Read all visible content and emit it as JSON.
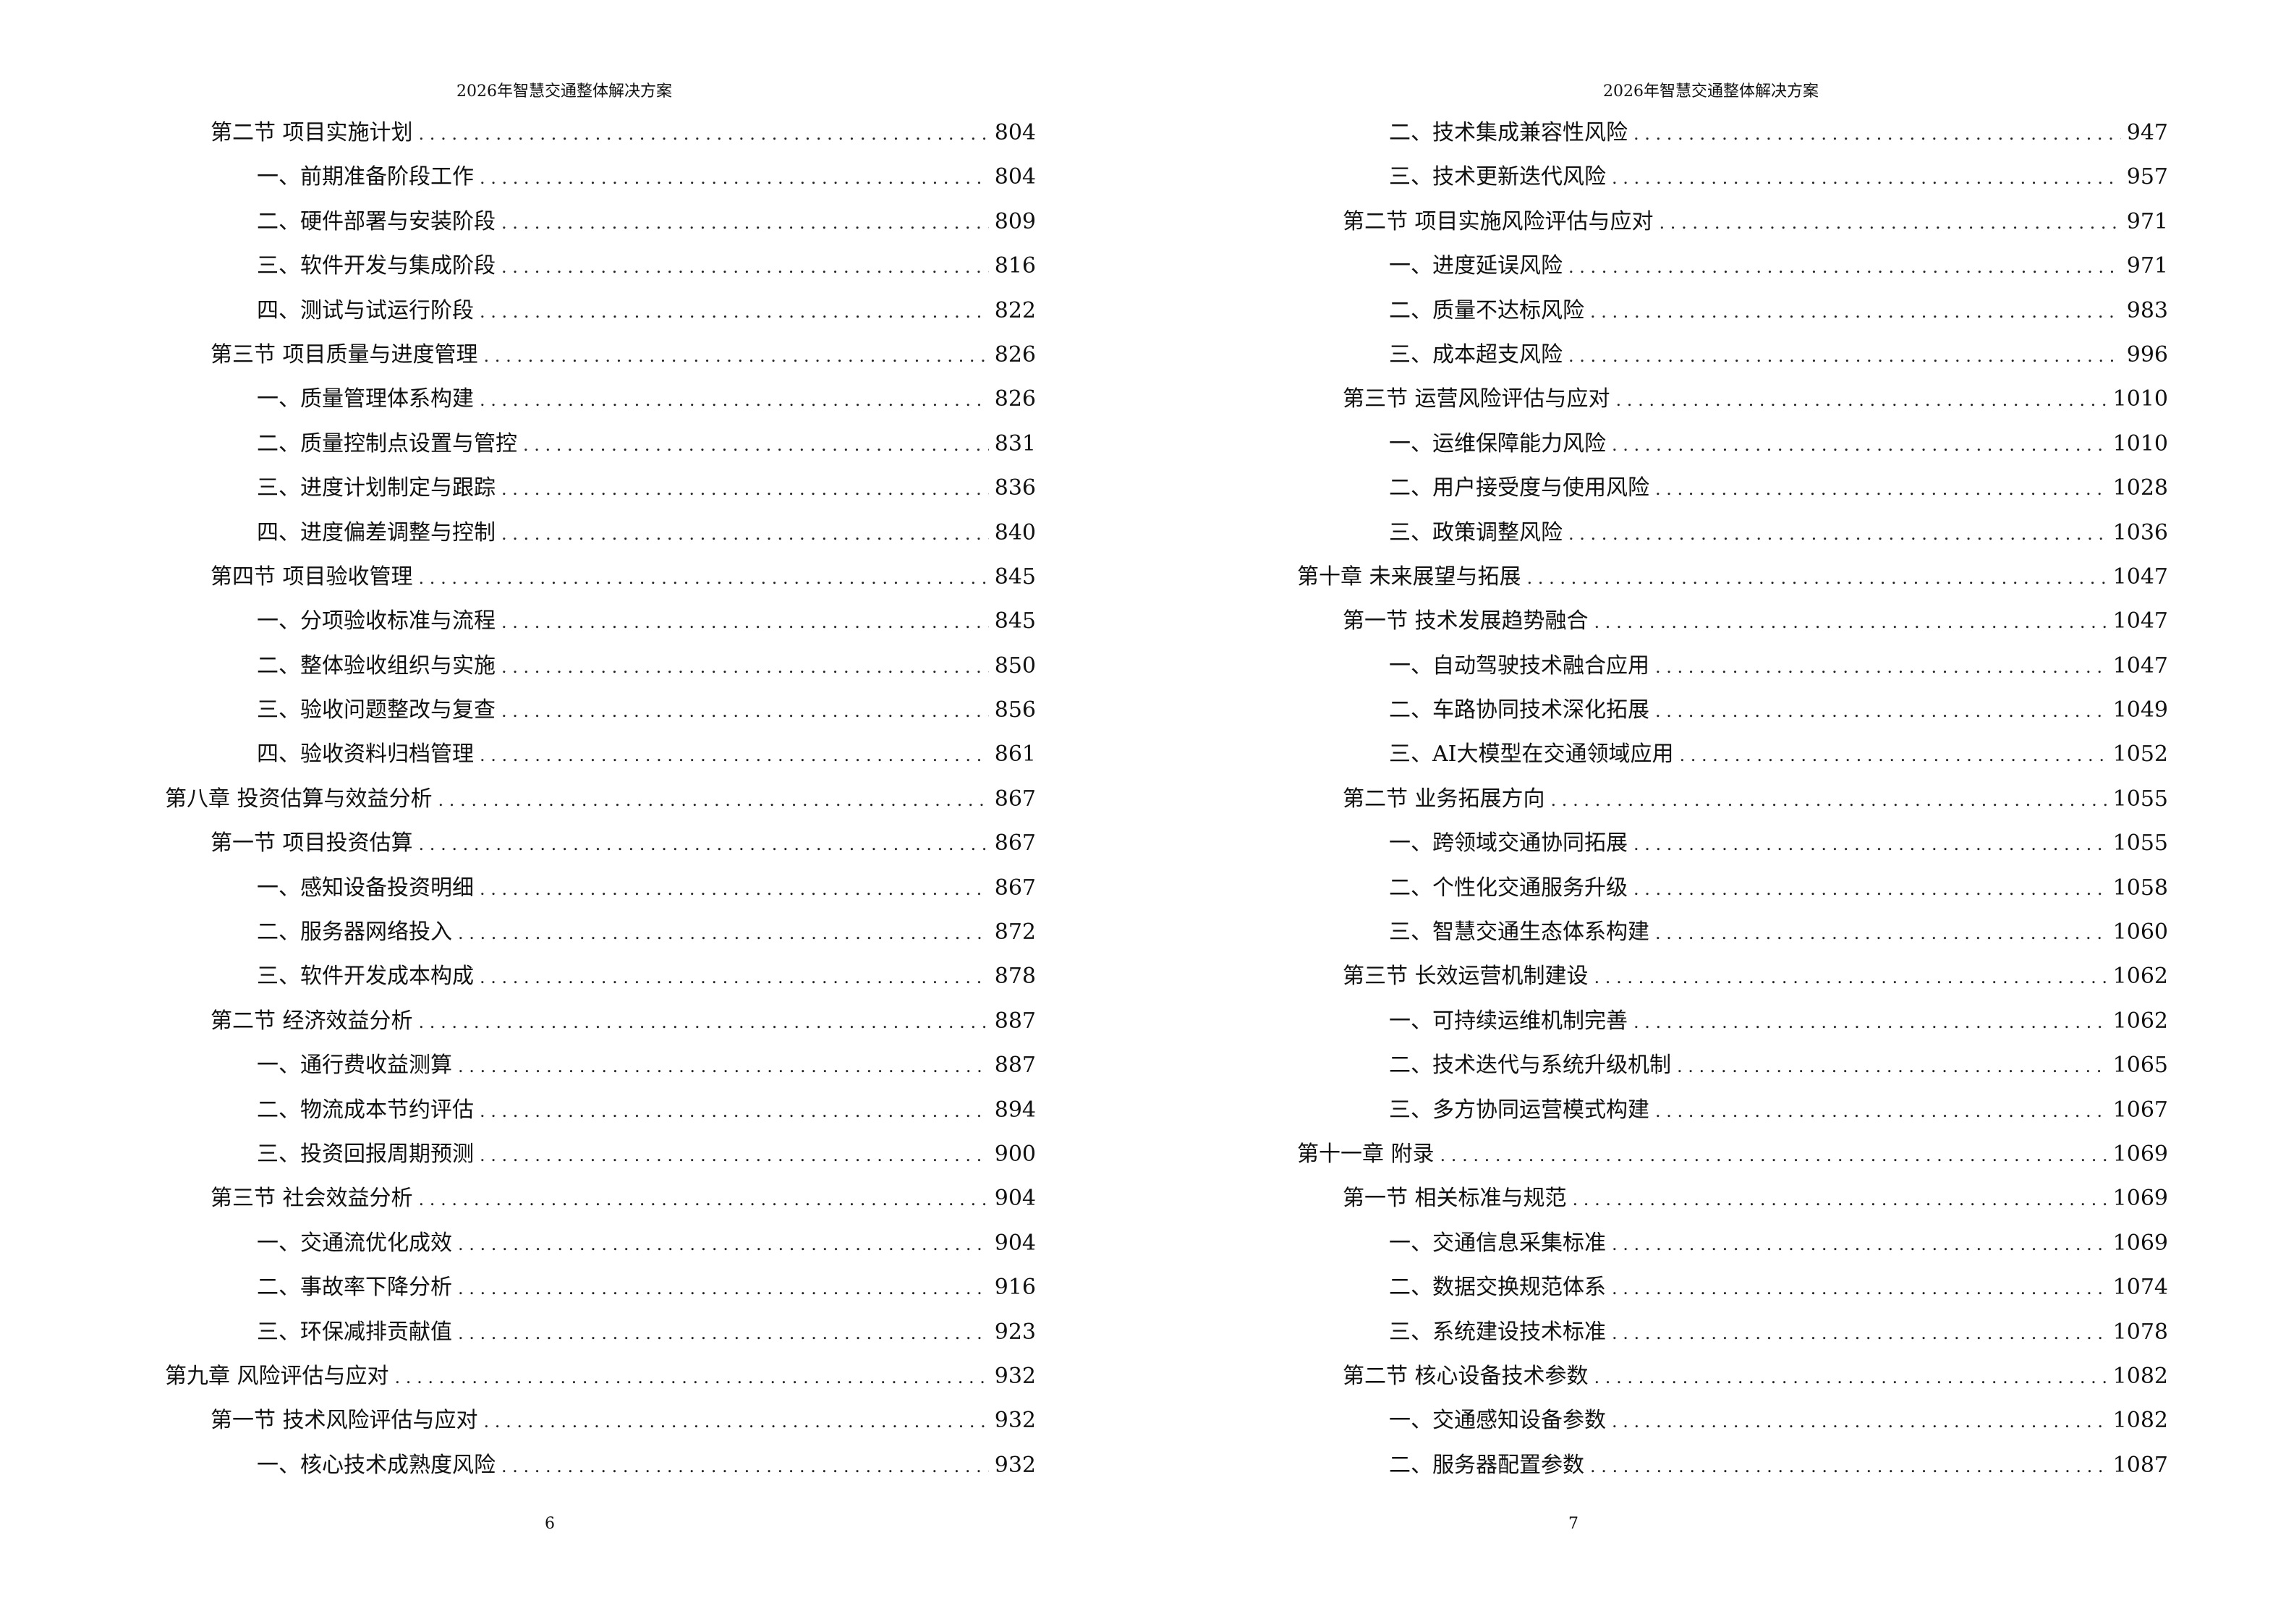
{
  "pages": [
    {
      "header": "2026年智慧交通整体解决方案",
      "page_number": "6",
      "entries": [
        {
          "level": 1,
          "title": "第二节  项目实施计划",
          "page": "804"
        },
        {
          "level": 2,
          "title": "一、前期准备阶段工作",
          "page": "804"
        },
        {
          "level": 2,
          "title": "二、硬件部署与安装阶段",
          "page": "809"
        },
        {
          "level": 2,
          "title": "三、软件开发与集成阶段",
          "page": "816"
        },
        {
          "level": 2,
          "title": "四、测试与试运行阶段",
          "page": "822"
        },
        {
          "level": 1,
          "title": "第三节  项目质量与进度管理",
          "page": "826"
        },
        {
          "level": 2,
          "title": "一、质量管理体系构建",
          "page": "826"
        },
        {
          "level": 2,
          "title": "二、质量控制点设置与管控",
          "page": "831"
        },
        {
          "level": 2,
          "title": "三、进度计划制定与跟踪",
          "page": "836"
        },
        {
          "level": 2,
          "title": "四、进度偏差调整与控制",
          "page": "840"
        },
        {
          "level": 1,
          "title": "第四节  项目验收管理",
          "page": "845"
        },
        {
          "level": 2,
          "title": "一、分项验收标准与流程",
          "page": "845"
        },
        {
          "level": 2,
          "title": "二、整体验收组织与实施",
          "page": "850"
        },
        {
          "level": 2,
          "title": "三、验收问题整改与复查",
          "page": "856"
        },
        {
          "level": 2,
          "title": "四、验收资料归档管理",
          "page": "861"
        },
        {
          "level": 0,
          "title": "第八章  投资估算与效益分析",
          "page": "867"
        },
        {
          "level": 1,
          "title": "第一节  项目投资估算",
          "page": "867"
        },
        {
          "level": 2,
          "title": "一、感知设备投资明细",
          "page": "867"
        },
        {
          "level": 2,
          "title": "二、服务器网络投入",
          "page": "872"
        },
        {
          "level": 2,
          "title": "三、软件开发成本构成",
          "page": "878"
        },
        {
          "level": 1,
          "title": "第二节  经济效益分析",
          "page": "887"
        },
        {
          "level": 2,
          "title": "一、通行费收益测算",
          "page": "887"
        },
        {
          "level": 2,
          "title": "二、物流成本节约评估",
          "page": "894"
        },
        {
          "level": 2,
          "title": "三、投资回报周期预测",
          "page": "900"
        },
        {
          "level": 1,
          "title": "第三节  社会效益分析",
          "page": "904"
        },
        {
          "level": 2,
          "title": "一、交通流优化成效",
          "page": "904"
        },
        {
          "level": 2,
          "title": "二、事故率下降分析",
          "page": "916"
        },
        {
          "level": 2,
          "title": "三、环保减排贡献值",
          "page": "923"
        },
        {
          "level": 0,
          "title": "第九章  风险评估与应对",
          "page": "932"
        },
        {
          "level": 1,
          "title": "第一节  技术风险评估与应对",
          "page": "932"
        },
        {
          "level": 2,
          "title": "一、核心技术成熟度风险",
          "page": "932"
        }
      ]
    },
    {
      "header": "2026年智慧交通整体解决方案",
      "page_number": "7",
      "entries": [
        {
          "level": 2,
          "title": "二、技术集成兼容性风险",
          "page": "947"
        },
        {
          "level": 2,
          "title": "三、技术更新迭代风险",
          "page": "957"
        },
        {
          "level": 1,
          "title": "第二节  项目实施风险评估与应对",
          "page": "971"
        },
        {
          "level": 2,
          "title": "一、进度延误风险",
          "page": "971"
        },
        {
          "level": 2,
          "title": "二、质量不达标风险",
          "page": "983"
        },
        {
          "level": 2,
          "title": "三、成本超支风险",
          "page": "996"
        },
        {
          "level": 1,
          "title": "第三节  运营风险评估与应对",
          "page": "1010"
        },
        {
          "level": 2,
          "title": "一、运维保障能力风险",
          "page": "1010"
        },
        {
          "level": 2,
          "title": "二、用户接受度与使用风险",
          "page": "1028"
        },
        {
          "level": 2,
          "title": "三、政策调整风险",
          "page": "1036"
        },
        {
          "level": 0,
          "title": "第十章  未来展望与拓展",
          "page": "1047"
        },
        {
          "level": 1,
          "title": "第一节  技术发展趋势融合",
          "page": "1047"
        },
        {
          "level": 2,
          "title": "一、自动驾驶技术融合应用",
          "page": "1047"
        },
        {
          "level": 2,
          "title": "二、车路协同技术深化拓展",
          "page": "1049"
        },
        {
          "level": 2,
          "title": "三、AI大模型在交通领域应用",
          "page": "1052"
        },
        {
          "level": 1,
          "title": "第二节  业务拓展方向",
          "page": "1055"
        },
        {
          "level": 2,
          "title": "一、跨领域交通协同拓展",
          "page": "1055"
        },
        {
          "level": 2,
          "title": "二、个性化交通服务升级",
          "page": "1058"
        },
        {
          "level": 2,
          "title": "三、智慧交通生态体系构建",
          "page": "1060"
        },
        {
          "level": 1,
          "title": "第三节  长效运营机制建设",
          "page": "1062"
        },
        {
          "level": 2,
          "title": "一、可持续运维机制完善",
          "page": "1062"
        },
        {
          "level": 2,
          "title": "二、技术迭代与系统升级机制",
          "page": "1065"
        },
        {
          "level": 2,
          "title": "三、多方协同运营模式构建",
          "page": "1067"
        },
        {
          "level": 0,
          "title": "第十一章  附录",
          "page": "1069"
        },
        {
          "level": 1,
          "title": "第一节  相关标准与规范",
          "page": "1069"
        },
        {
          "level": 2,
          "title": "一、交通信息采集标准",
          "page": "1069"
        },
        {
          "level": 2,
          "title": "二、数据交换规范体系",
          "page": "1074"
        },
        {
          "level": 2,
          "title": "三、系统建设技术标准",
          "page": "1078"
        },
        {
          "level": 1,
          "title": "第二节  核心设备技术参数",
          "page": "1082"
        },
        {
          "level": 2,
          "title": "一、交通感知设备参数",
          "page": "1082"
        },
        {
          "level": 2,
          "title": "二、服务器配置参数",
          "page": "1087"
        }
      ]
    }
  ]
}
